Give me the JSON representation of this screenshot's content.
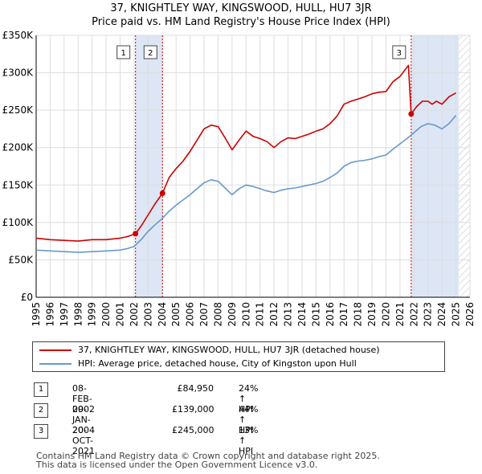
{
  "title_line1": "37, KNIGHTLEY WAY, KINGSWOOD, HULL, HU7 3JR",
  "title_line2": "Price paid vs. HM Land Registry's House Price Index (HPI)",
  "colors": {
    "price": "#cc0000",
    "hpi": "#6699cc",
    "shade": "#dde6f5",
    "grid": "#dddddd",
    "vline": "#cc0000"
  },
  "chart_data": {
    "type": "line",
    "title": "Price paid vs. HM Land Registry's House Price Index (HPI)",
    "xlabel": "",
    "ylabel": "",
    "xlim": [
      1995,
      2026
    ],
    "ylim": [
      0,
      350000
    ],
    "y_ticks": [
      0,
      50000,
      100000,
      150000,
      200000,
      250000,
      300000,
      350000
    ],
    "y_tick_labels": [
      "£0",
      "£50K",
      "£100K",
      "£150K",
      "£200K",
      "£250K",
      "£300K",
      "£350K"
    ],
    "x_ticks": [
      1995,
      1996,
      1997,
      1998,
      1999,
      2000,
      2001,
      2002,
      2003,
      2004,
      2005,
      2006,
      2007,
      2008,
      2009,
      2010,
      2011,
      2012,
      2013,
      2014,
      2015,
      2016,
      2017,
      2018,
      2019,
      2020,
      2021,
      2022,
      2023,
      2024,
      2025,
      2026
    ],
    "x_tick_labels": [
      "1995",
      "1996",
      "1997",
      "1998",
      "1999",
      "2000",
      "2001",
      "2002",
      "2003",
      "2004",
      "2005",
      "2006",
      "2007",
      "2008",
      "2009",
      "2010",
      "2011",
      "2012",
      "2013",
      "2014",
      "2015",
      "2016",
      "2017",
      "2018",
      "2019",
      "2020",
      "2021",
      "2022",
      "2023",
      "2024",
      "2025",
      "2026"
    ],
    "grid": true,
    "legend": "below",
    "shaded_spans": [
      [
        2002.1,
        2004.03
      ],
      [
        2021.8,
        2025.2
      ]
    ],
    "hatched_after": 2025.2,
    "series": [
      {
        "name": "37, KNIGHTLEY WAY, KINGSWOOD, HULL, HU7 3JR (detached house)",
        "x": [
          1995,
          1996,
          1997,
          1998,
          1999,
          2000,
          2001,
          2001.5,
          2002.1,
          2002.5,
          2003,
          2003.5,
          2004.03,
          2004.5,
          2005,
          2005.5,
          2006,
          2006.5,
          2007,
          2007.5,
          2008,
          2008.5,
          2009,
          2009.5,
          2010,
          2010.5,
          2011,
          2011.5,
          2012,
          2012.5,
          2013,
          2013.5,
          2014,
          2014.5,
          2015,
          2015.5,
          2016,
          2016.5,
          2017,
          2017.5,
          2018,
          2018.5,
          2019,
          2019.5,
          2020,
          2020.5,
          2021,
          2021.6,
          2021.8,
          2022.2,
          2022.6,
          2023,
          2023.3,
          2023.6,
          2024,
          2024.5,
          2025
        ],
        "values": [
          79000,
          77000,
          76000,
          75000,
          77000,
          77000,
          79000,
          81000,
          84950,
          95000,
          110000,
          125000,
          139000,
          160000,
          172000,
          182000,
          195000,
          210000,
          225000,
          230000,
          228000,
          213000,
          197000,
          210000,
          222000,
          215000,
          212000,
          208000,
          200000,
          208000,
          213000,
          212000,
          215000,
          218000,
          222000,
          225000,
          232000,
          242000,
          258000,
          262000,
          265000,
          268000,
          272000,
          274000,
          275000,
          288000,
          295000,
          310000,
          245000,
          255000,
          262000,
          262000,
          258000,
          262000,
          258000,
          268000,
          273000
        ]
      },
      {
        "name": "HPI: Average price, detached house, City of Kingston upon Hull",
        "x": [
          1995,
          1996,
          1997,
          1998,
          1999,
          2000,
          2001,
          2001.5,
          2002,
          2002.5,
          2003,
          2003.5,
          2004,
          2004.5,
          2005,
          2005.5,
          2006,
          2006.5,
          2007,
          2007.5,
          2008,
          2008.5,
          2009,
          2009.5,
          2010,
          2010.5,
          2011,
          2011.5,
          2012,
          2012.5,
          2013,
          2013.5,
          2014,
          2014.5,
          2015,
          2015.5,
          2016,
          2016.5,
          2017,
          2017.5,
          2018,
          2018.5,
          2019,
          2019.5,
          2020,
          2020.5,
          2021,
          2021.5,
          2022,
          2022.5,
          2023,
          2023.5,
          2024,
          2024.5,
          2025
        ],
        "values": [
          63000,
          62000,
          61000,
          60000,
          61000,
          62000,
          63000,
          65000,
          68000,
          77000,
          88000,
          97000,
          105000,
          115000,
          123000,
          130000,
          137000,
          145000,
          153000,
          157000,
          155000,
          146000,
          137000,
          145000,
          150000,
          148000,
          145000,
          142000,
          140000,
          143000,
          145000,
          146000,
          148000,
          150000,
          152000,
          155000,
          160000,
          166000,
          175000,
          180000,
          182000,
          183000,
          185000,
          188000,
          190000,
          198000,
          205000,
          212000,
          220000,
          228000,
          232000,
          230000,
          225000,
          232000,
          243000
        ]
      }
    ]
  },
  "legend": {
    "price_label": "37, KNIGHTLEY WAY, KINGSWOOD, HULL, HU7 3JR (detached house)",
    "hpi_label": "HPI: Average price, detached house, City of Kingston upon Hull"
  },
  "markers": [
    {
      "num": "1",
      "year": 2002.1,
      "price": 84950
    },
    {
      "num": "2",
      "year": 2004.03,
      "price": 139000
    },
    {
      "num": "3",
      "year": 2021.8,
      "price": 245000
    }
  ],
  "sales": [
    {
      "num": "1",
      "date": "08-FEB-2002",
      "price": "£84,950",
      "hpi": "24% ↑ HPI"
    },
    {
      "num": "2",
      "date": "09-JAN-2004",
      "price": "£139,000",
      "hpi": "44% ↑ HPI"
    },
    {
      "num": "3",
      "date": "20-OCT-2021",
      "price": "£245,000",
      "hpi": "13% ↑ HPI"
    }
  ],
  "footer_line1": "Contains HM Land Registry data © Crown copyright and database right 2025.",
  "footer_line2": "This data is licensed under the Open Government Licence v3.0."
}
